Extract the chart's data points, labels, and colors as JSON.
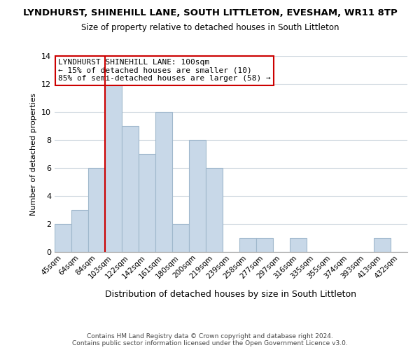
{
  "title1": "LYNDHURST, SHINEHILL LANE, SOUTH LITTLETON, EVESHAM, WR11 8TP",
  "title2": "Size of property relative to detached houses in South Littleton",
  "xlabel": "Distribution of detached houses by size in South Littleton",
  "ylabel": "Number of detached properties",
  "bin_labels": [
    "45sqm",
    "64sqm",
    "84sqm",
    "103sqm",
    "122sqm",
    "142sqm",
    "161sqm",
    "180sqm",
    "200sqm",
    "219sqm",
    "239sqm",
    "258sqm",
    "277sqm",
    "297sqm",
    "316sqm",
    "335sqm",
    "355sqm",
    "374sqm",
    "393sqm",
    "413sqm",
    "432sqm"
  ],
  "bar_heights": [
    2,
    3,
    6,
    12,
    9,
    7,
    10,
    2,
    8,
    6,
    0,
    1,
    1,
    0,
    1,
    0,
    0,
    0,
    0,
    1,
    0
  ],
  "bar_color": "#c8d8e8",
  "bar_edgecolor": "#a0b8cc",
  "vline_x_index": 3,
  "vline_color": "#cc0000",
  "annotation_title": "LYNDHURST SHINEHILL LANE: 100sqm",
  "annotation_line1": "← 15% of detached houses are smaller (10)",
  "annotation_line2": "85% of semi-detached houses are larger (58) →",
  "annotation_box_edgecolor": "#cc0000",
  "ylim": [
    0,
    14
  ],
  "yticks": [
    0,
    2,
    4,
    6,
    8,
    10,
    12,
    14
  ],
  "footer1": "Contains HM Land Registry data © Crown copyright and database right 2024.",
  "footer2": "Contains public sector information licensed under the Open Government Licence v3.0.",
  "bg_color": "#ffffff",
  "grid_color": "#d0d8e0"
}
